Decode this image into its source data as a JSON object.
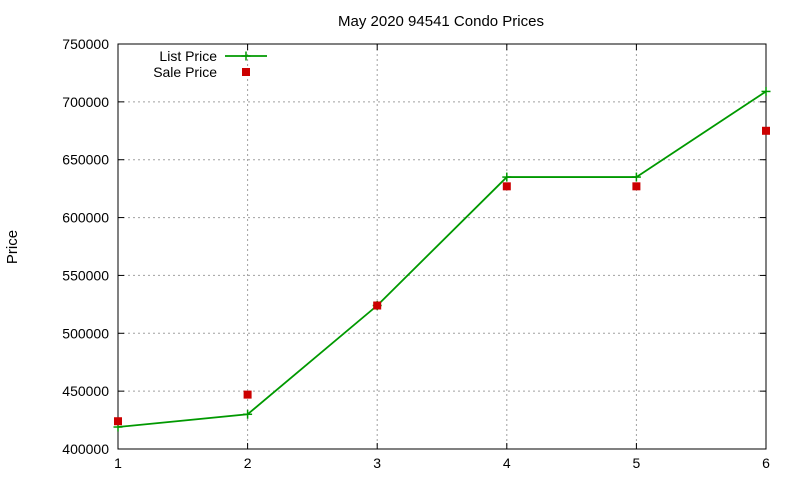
{
  "chart_data": {
    "type": "line",
    "title": "May 2020 94541 Condo Prices",
    "xlabel": "",
    "ylabel": "Price",
    "xlim": [
      1,
      6
    ],
    "ylim": [
      400000,
      750000
    ],
    "xticks": [
      "1",
      "2",
      "3",
      "4",
      "5",
      "6"
    ],
    "yticks": [
      "400000",
      "450000",
      "500000",
      "550000",
      "600000",
      "650000",
      "700000",
      "750000"
    ],
    "grid": true,
    "legend_position": "top-left",
    "series": [
      {
        "name": "List Price",
        "style": "line-with-plus-markers",
        "color": "#009900",
        "points": [
          {
            "x": 1,
            "y": 419000
          },
          {
            "x": 2,
            "y": 430000
          },
          {
            "x": 3,
            "y": 524000
          },
          {
            "x": 4,
            "y": 635000
          },
          {
            "x": 5,
            "y": 635000
          },
          {
            "x": 6,
            "y": 709000
          }
        ]
      },
      {
        "name": "Sale Price",
        "style": "square-markers",
        "color": "#cc0000",
        "points": [
          {
            "x": 1,
            "y": 424000
          },
          {
            "x": 2,
            "y": 447000
          },
          {
            "x": 3,
            "y": 524000
          },
          {
            "x": 4,
            "y": 627000
          },
          {
            "x": 5,
            "y": 627000
          },
          {
            "x": 6,
            "y": 675000
          }
        ]
      }
    ]
  }
}
